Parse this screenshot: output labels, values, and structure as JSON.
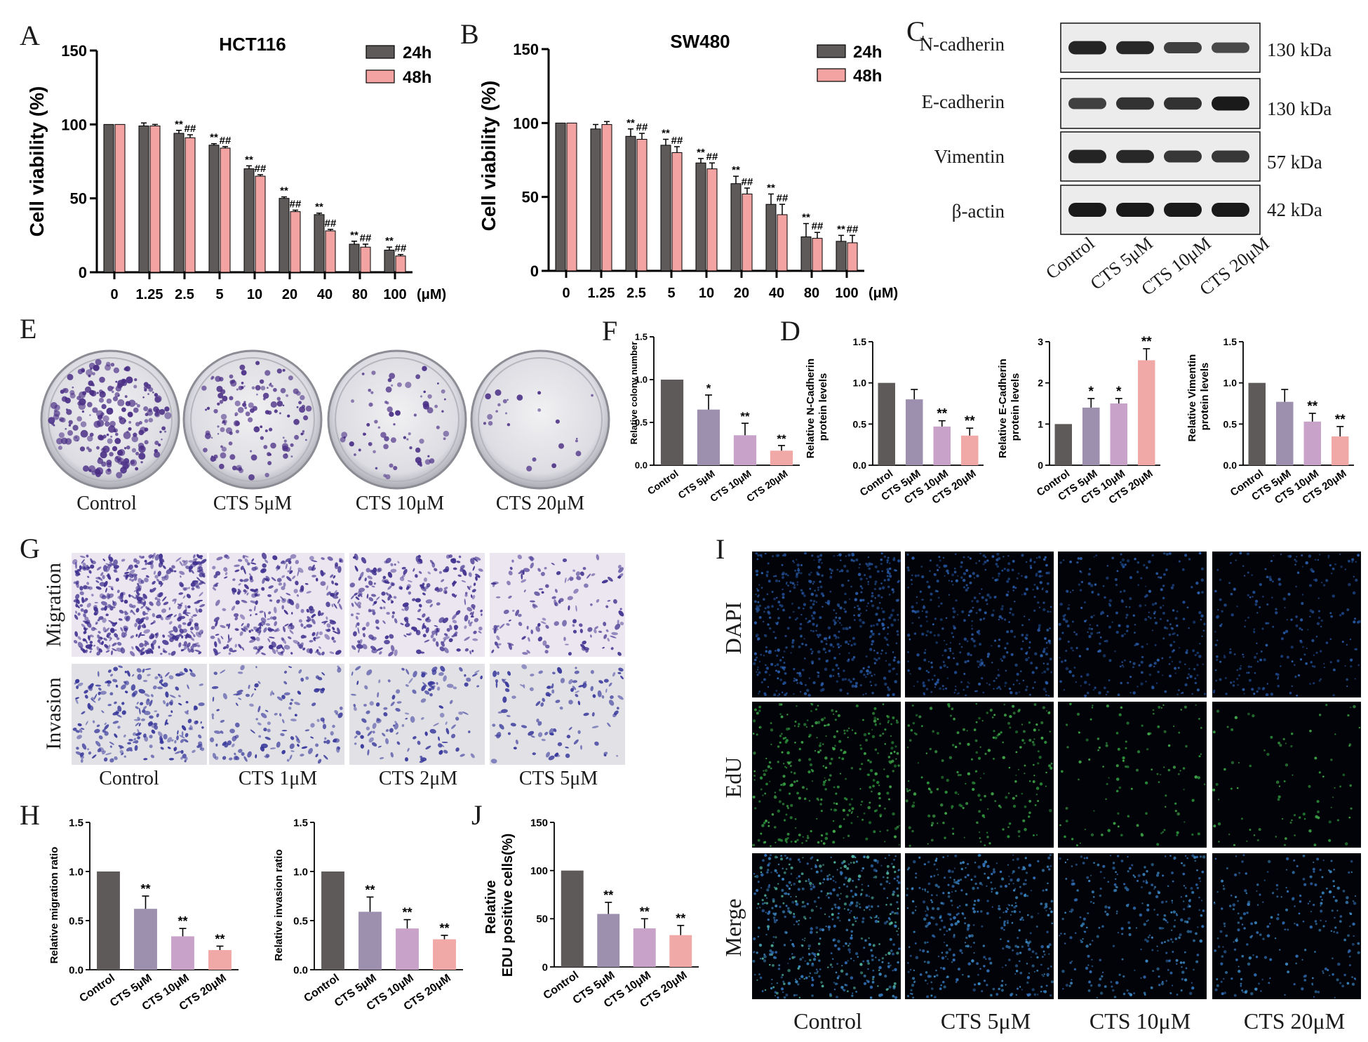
{
  "colors": {
    "dark": "#5f5a5a",
    "pink": "#f4a3a3",
    "lavender": "#9d8fae",
    "lilac": "#c8a2c8",
    "salmon": "#f0a9a7",
    "crystal_violet": "#4b2f86"
  },
  "panel_letters": {
    "A": "A",
    "B": "B",
    "C": "C",
    "D": "D",
    "E": "E",
    "F": "F",
    "G": "G",
    "H": "H",
    "I": "I",
    "J": "J"
  },
  "line_charts": [
    {
      "id": "A",
      "title": "HCT116",
      "ylabel": "Cell viability (%)",
      "unit": "(μM)",
      "yticks": [
        "0",
        "50",
        "100",
        "150"
      ],
      "ylim": [
        0,
        150
      ],
      "categories": [
        "0",
        "1.25",
        "2.5",
        "5",
        "10",
        "20",
        "40",
        "80",
        "100"
      ],
      "legend": [
        "24h",
        "48h"
      ],
      "series": [
        {
          "name": "24h",
          "values": [
            100,
            99,
            94,
            86,
            70,
            50,
            39,
            19,
            15
          ],
          "errors": [
            0,
            2,
            2,
            1,
            2,
            1,
            1,
            2,
            2
          ],
          "marks": [
            "",
            "",
            "**",
            "**",
            "**",
            "**",
            "**",
            "**",
            "**"
          ]
        },
        {
          "name": "48h",
          "values": [
            100,
            99,
            91,
            84,
            65,
            41,
            28,
            17,
            11
          ],
          "errors": [
            0,
            1,
            2,
            1,
            1,
            1,
            1,
            2,
            1
          ],
          "marks": [
            "",
            "",
            "##",
            "##",
            "##",
            "##",
            "##",
            "##",
            "##"
          ]
        }
      ]
    },
    {
      "id": "B",
      "title": "SW480",
      "ylabel": "Cell viability (%)",
      "unit": "(μM)",
      "yticks": [
        "0",
        "50",
        "100",
        "150"
      ],
      "ylim": [
        0,
        150
      ],
      "categories": [
        "0",
        "1.25",
        "2.5",
        "5",
        "10",
        "20",
        "40",
        "80",
        "100"
      ],
      "legend": [
        "24h",
        "48h"
      ],
      "series": [
        {
          "name": "24h",
          "values": [
            100,
            96,
            91,
            85,
            73,
            59,
            45,
            23,
            20
          ],
          "errors": [
            0,
            3,
            5,
            4,
            3,
            5,
            7,
            9,
            4
          ],
          "marks": [
            "",
            "",
            "**",
            "**",
            "**",
            "**",
            "**",
            "**",
            "**"
          ]
        },
        {
          "name": "48h",
          "values": [
            100,
            99,
            89,
            80,
            69,
            52,
            38,
            22,
            19
          ],
          "errors": [
            0,
            2,
            4,
            4,
            4,
            4,
            7,
            4,
            5
          ],
          "marks": [
            "",
            "",
            "##",
            "##",
            "##",
            "##",
            "##",
            "##",
            "##"
          ]
        }
      ]
    }
  ],
  "western_blot": {
    "proteins": [
      "N-cadherin",
      "E-cadherin",
      "Vimentin",
      "β-actin"
    ],
    "sizes": [
      "130 kDa",
      "130 kDa",
      "57 kDa",
      "42 kDa"
    ],
    "lanes": [
      "Control",
      "CTS 5μM",
      "CTS 10μM",
      "CTS 20μM"
    ],
    "band_intensity": [
      [
        0.9,
        0.85,
        0.6,
        0.5
      ],
      [
        0.6,
        0.75,
        0.75,
        1.0
      ],
      [
        0.9,
        0.85,
        0.7,
        0.7
      ],
      [
        1.0,
        1.0,
        1.0,
        1.0
      ]
    ]
  },
  "colony_labels": [
    "Control",
    "CTS 5μM",
    "CTS 10μM",
    "CTS 20μM"
  ],
  "colony_density": [
    1.0,
    0.6,
    0.3,
    0.1
  ],
  "transwell": {
    "row_labels": [
      "Migration",
      "Invasion"
    ],
    "col_labels": [
      "Control",
      "CTS 1μM",
      "CTS 2μM",
      "CTS 5μM"
    ],
    "density": [
      [
        1.0,
        0.65,
        0.55,
        0.25
      ],
      [
        0.75,
        0.4,
        0.35,
        0.3
      ]
    ]
  },
  "edu": {
    "row_labels": [
      "DAPI",
      "EdU",
      "Merge"
    ],
    "col_labels": [
      "Control",
      "CTS 5μM",
      "CTS 10μM",
      "CTS 20μM"
    ],
    "density": [
      1.0,
      0.75,
      0.5,
      0.4
    ]
  },
  "chart_data": [
    {
      "panel": "F",
      "type": "bar",
      "categories": [
        "Control",
        "CTS 5μM",
        "CTS 10μM",
        "CTS 20μM"
      ],
      "values": [
        1.0,
        0.65,
        0.35,
        0.17
      ],
      "errors": [
        0,
        0.17,
        0.14,
        0.06
      ],
      "marks": [
        "",
        "*",
        "**",
        "**"
      ],
      "ylabel": "Relative colony number",
      "yticks": [
        "0.0",
        "0.5",
        "1.0",
        "1.5"
      ],
      "ylim": [
        0,
        1.5
      ]
    },
    {
      "panel": "D1",
      "type": "bar",
      "categories": [
        "Control",
        "CTS 5μM",
        "CTS 10μM",
        "CTS 20μM"
      ],
      "values": [
        1.0,
        0.8,
        0.47,
        0.36
      ],
      "errors": [
        0,
        0.12,
        0.07,
        0.09
      ],
      "marks": [
        "",
        "",
        "**",
        "**"
      ],
      "ylabel": "Relative N-Cadherin protein levels",
      "yticks": [
        "0.0",
        "0.5",
        "1.0",
        "1.5"
      ],
      "ylim": [
        0,
        1.5
      ]
    },
    {
      "panel": "D2",
      "type": "bar",
      "categories": [
        "Control",
        "CTS 5μM",
        "CTS 10μM",
        "CTS 20μM"
      ],
      "values": [
        1.0,
        1.4,
        1.5,
        2.55
      ],
      "errors": [
        0,
        0.22,
        0.12,
        0.28
      ],
      "marks": [
        "",
        "*",
        "*",
        "**"
      ],
      "ylabel": "Relative E-Cadherin protein levels",
      "yticks": [
        "0",
        "1",
        "2",
        "3"
      ],
      "ylim": [
        0,
        3
      ]
    },
    {
      "panel": "D3",
      "type": "bar",
      "categories": [
        "Control",
        "CTS 5μM",
        "CTS 10μM",
        "CTS 20μM"
      ],
      "values": [
        1.0,
        0.77,
        0.53,
        0.35
      ],
      "errors": [
        0,
        0.15,
        0.1,
        0.12
      ],
      "marks": [
        "",
        "",
        "**",
        "**"
      ],
      "ylabel": "Relative Vimentin protein levels",
      "yticks": [
        "0.0",
        "0.5",
        "1.0",
        "1.5"
      ],
      "ylim": [
        0,
        1.5
      ]
    },
    {
      "panel": "H1",
      "type": "bar",
      "categories": [
        "Control",
        "CTS 5μM",
        "CTS 10μM",
        "CTS 20μM"
      ],
      "values": [
        1.0,
        0.62,
        0.34,
        0.2
      ],
      "errors": [
        0,
        0.13,
        0.08,
        0.04
      ],
      "marks": [
        "",
        "**",
        "**",
        "**"
      ],
      "ylabel": "Relative migration ratio",
      "yticks": [
        "0.0",
        "0.5",
        "1.0",
        "1.5"
      ],
      "ylim": [
        0,
        1.5
      ]
    },
    {
      "panel": "H2",
      "type": "bar",
      "categories": [
        "Control",
        "CTS 5μM",
        "CTS 10μM",
        "CTS 20μM"
      ],
      "values": [
        1.0,
        0.59,
        0.42,
        0.31
      ],
      "errors": [
        0,
        0.15,
        0.09,
        0.04
      ],
      "marks": [
        "",
        "**",
        "**",
        "**"
      ],
      "ylabel": "Relative invasion ratio",
      "yticks": [
        "0.0",
        "0.5",
        "1.0",
        "1.5"
      ],
      "ylim": [
        0,
        1.5
      ]
    },
    {
      "panel": "J",
      "type": "bar",
      "categories": [
        "Control",
        "CTS 5μM",
        "CTS 10μM",
        "CTS 20μM"
      ],
      "values": [
        100,
        55,
        40,
        33
      ],
      "errors": [
        0,
        12,
        10,
        10
      ],
      "marks": [
        "",
        "**",
        "**",
        "**"
      ],
      "ylabel": "Relative EDU positive cells(%)",
      "yticks": [
        "0",
        "50",
        "100",
        "150"
      ],
      "ylim": [
        0,
        150
      ]
    }
  ]
}
